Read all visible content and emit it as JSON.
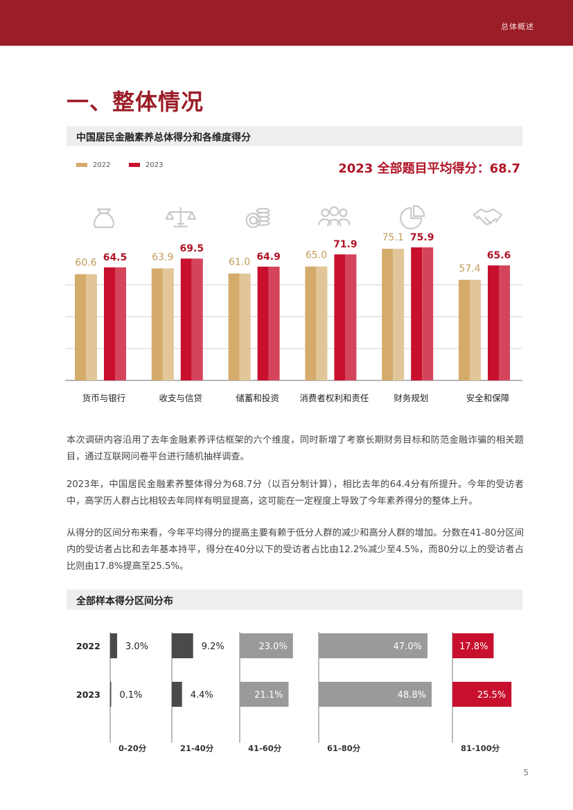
{
  "header": {
    "section_label": "总体概述"
  },
  "page_title": "一、整体情况",
  "section1": {
    "title": "中国居民金融素养总体得分和各维度得分"
  },
  "section2": {
    "title": "全部样本得分区间分布"
  },
  "legend": [
    {
      "label": "2022",
      "color": "#d4ab6a"
    },
    {
      "label": "2023",
      "color": "#c8102e"
    }
  ],
  "average_score": "2023 全部题目平均得分：68.7",
  "paragraphs": [
    "本次调研内容沿用了去年金融素养评估框架的六个维度，同时新增了考察长期财务目标和防范金融诈骗的相关题目，通过互联网问卷平台进行随机抽样调查。",
    "2023年，中国居民金融素养整体得分为68.7分（以百分制计算），相比去年的64.4分有所提升。今年的受访者中，高学历人群占比相较去年同样有明显提高，这可能在一定程度上导致了今年素养得分的整体上升。",
    "从得分的区间分布来看，今年平均得分的提高主要有赖于低分人群的减少和高分人群的增加。分数在41-80分区间内的受访者占比和去年基本持平，得分在40分以下的受访者占比由12.2%减少至4.5%，而80分以上的受访者占比则由17.8%提高至25.5%。"
  ],
  "page_number": "5",
  "chart_data": [
    {
      "type": "bar",
      "categories": [
        "货币与银行",
        "收支与信贷",
        "储蓄和投资",
        "消费者权利和责任",
        "财务规划",
        "安全和保障"
      ],
      "category_icons": [
        "money-bag-icon",
        "scales-icon",
        "coins-icon",
        "people-group-icon",
        "pie-chart-icon",
        "handshake-icon"
      ],
      "series": [
        {
          "name": "2022",
          "color": "#d4ab6a",
          "values": [
            60.6,
            63.9,
            61.0,
            65.0,
            75.1,
            57.4
          ],
          "labels": [
            "60.6",
            "63.9",
            "61.0",
            "65.0",
            "75.1",
            "57.4"
          ]
        },
        {
          "name": "2023",
          "color": "#c8102e",
          "values": [
            64.5,
            69.5,
            64.9,
            71.9,
            75.9,
            65.6
          ],
          "labels": [
            "64.5",
            "69.5",
            "64.9",
            "71.9",
            "75.9",
            "65.6"
          ]
        }
      ],
      "grid": true,
      "legend": "top-left"
    },
    {
      "type": "bar",
      "orientation": "horizontal",
      "years": [
        "2022",
        "2023"
      ],
      "categories": [
        "0-20分",
        "21-40分",
        "41-60分",
        "61-80分",
        "81-100分"
      ],
      "series": [
        {
          "name": "2022",
          "values": [
            3.0,
            9.2,
            23.0,
            47.0,
            17.8
          ],
          "labels": [
            "3.0%",
            "9.2%",
            "23.0%",
            "47.0%",
            "17.8%"
          ]
        },
        {
          "name": "2023",
          "values": [
            0.1,
            4.4,
            21.1,
            48.8,
            25.5
          ],
          "labels": [
            "0.1%",
            "4.4%",
            "21.1%",
            "48.8%",
            "25.5%"
          ]
        }
      ],
      "category_colors": [
        "#4a4a4a",
        "#4a4a4a",
        "#9a9a9a",
        "#9a9a9a",
        "#c8102e"
      ]
    }
  ]
}
